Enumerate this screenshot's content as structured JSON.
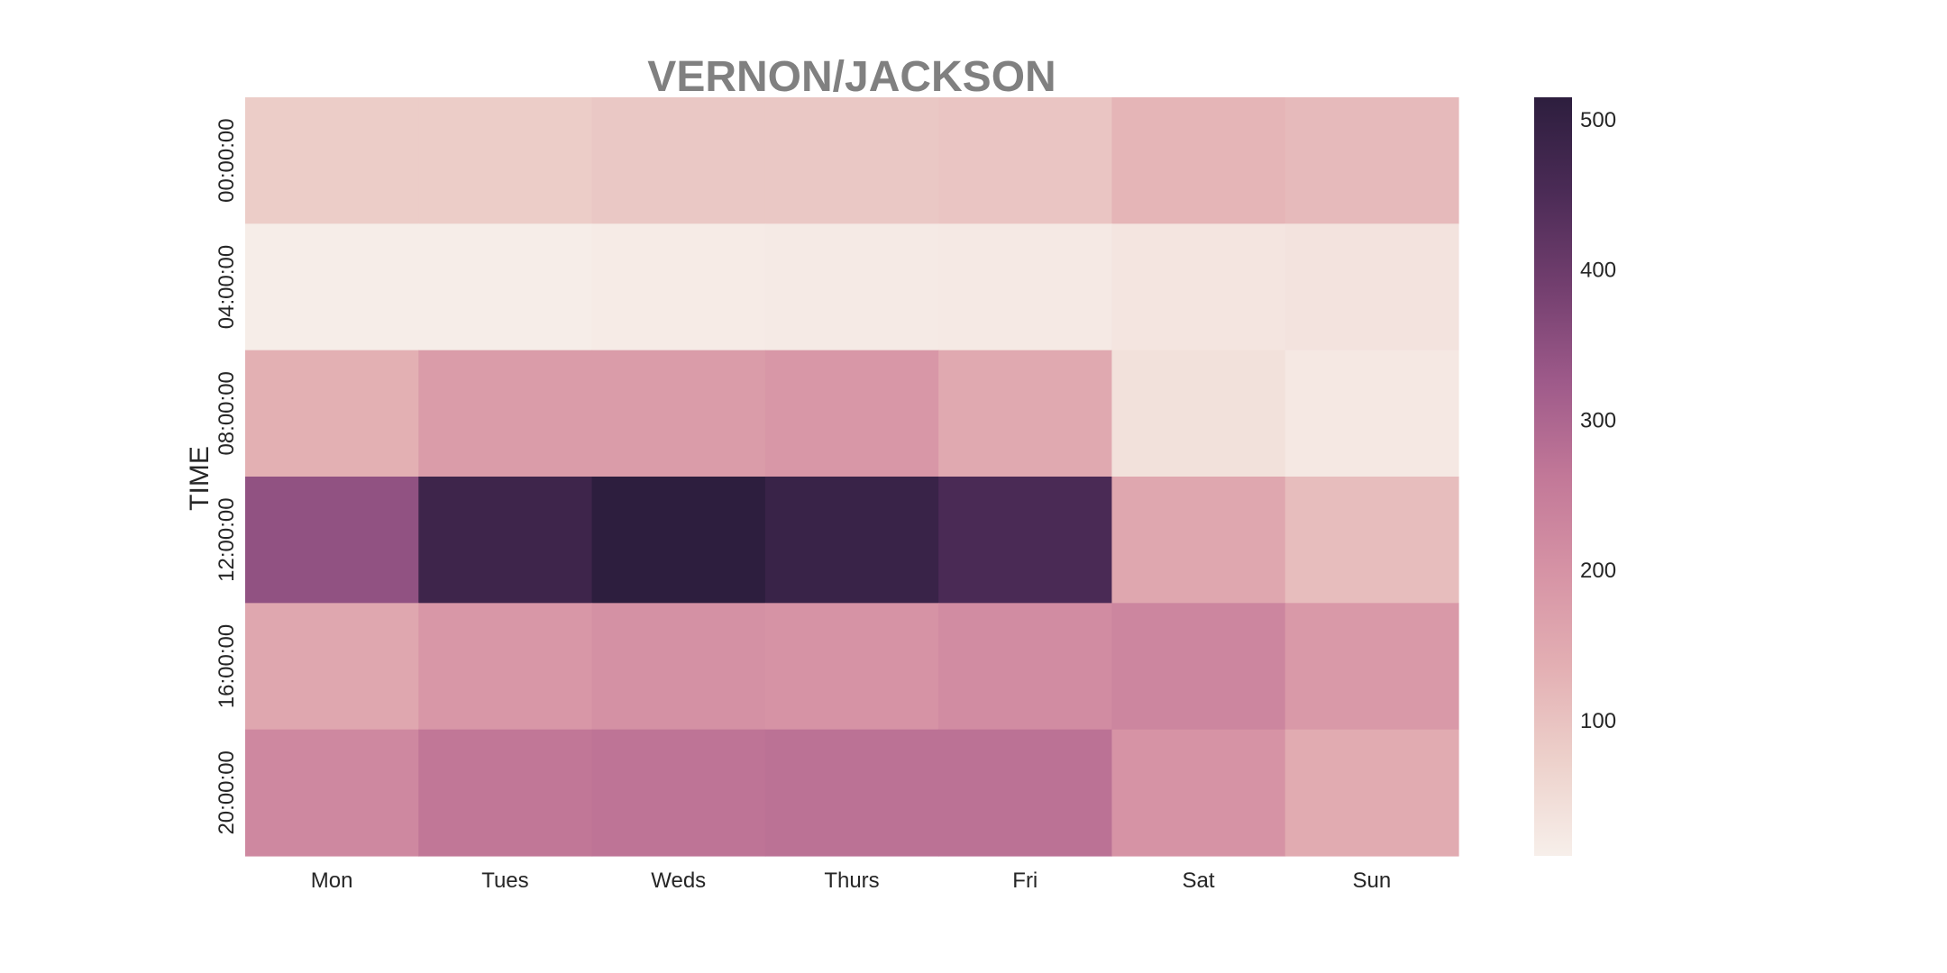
{
  "chart_data": {
    "type": "heatmap",
    "title": "VERNON/JACKSON",
    "xlabel": "",
    "ylabel": "TIME",
    "x_categories": [
      "Mon",
      "Tues",
      "Weds",
      "Thurs",
      "Fri",
      "Sat",
      "Sun"
    ],
    "y_categories": [
      "00:00:00",
      "04:00:00",
      "08:00:00",
      "12:00:00",
      "16:00:00",
      "20:00:00"
    ],
    "values": [
      [
        80,
        80,
        90,
        90,
        95,
        125,
        115
      ],
      [
        15,
        15,
        18,
        20,
        22,
        30,
        35
      ],
      [
        135,
        180,
        180,
        190,
        150,
        40,
        25
      ],
      [
        345,
        480,
        515,
        490,
        455,
        155,
        110
      ],
      [
        155,
        190,
        205,
        200,
        215,
        230,
        185
      ],
      [
        225,
        265,
        270,
        275,
        275,
        200,
        145
      ]
    ],
    "colorbar": {
      "vmin": 10,
      "vmax": 515,
      "ticks": [
        100,
        200,
        300,
        400,
        500
      ],
      "colors": [
        "#f7efea",
        "#edd1cb",
        "#e3afb3",
        "#d693a5",
        "#c27898",
        "#9e5a8a",
        "#733f6f",
        "#4b2b56",
        "#2d1e3e"
      ]
    },
    "grid": false
  }
}
